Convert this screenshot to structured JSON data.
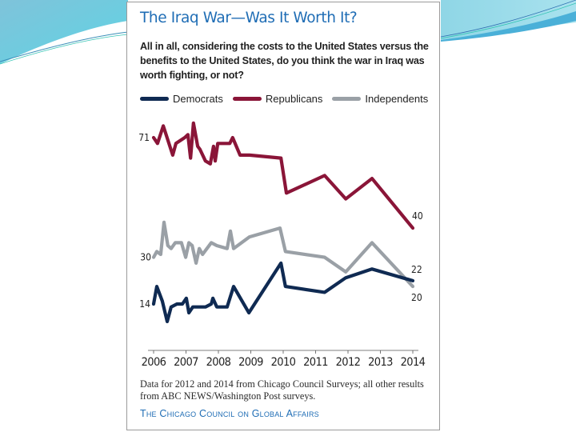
{
  "chart_data": {
    "type": "line",
    "title": "The Iraq War—Was It Worth It?",
    "subtitle": "All in all, considering the costs to the United States versus the benefits to the United States, do you think the war in Iraq was worth fighting, or not?",
    "xlabel": "",
    "ylabel": "",
    "xlim": [
      2006,
      2014
    ],
    "ylim": [
      8,
      76
    ],
    "grid": false,
    "legend_placement": "top",
    "x_ticks": [
      "2006",
      "2007",
      "2008",
      "2009",
      "2010",
      "2011",
      "2012",
      "2013",
      "2014"
    ],
    "series": [
      {
        "name": "Democrats",
        "color": "#0f2a52",
        "points": [
          [
            2006.0,
            14
          ],
          [
            2006.1,
            20
          ],
          [
            2006.27,
            15
          ],
          [
            2006.42,
            8
          ],
          [
            2006.54,
            13
          ],
          [
            2006.72,
            14
          ],
          [
            2006.89,
            14
          ],
          [
            2007.01,
            16
          ],
          [
            2007.09,
            11
          ],
          [
            2007.21,
            13
          ],
          [
            2007.36,
            13
          ],
          [
            2007.6,
            13
          ],
          [
            2007.78,
            14
          ],
          [
            2007.83,
            16
          ],
          [
            2007.95,
            13
          ],
          [
            2008.27,
            13
          ],
          [
            2008.47,
            20
          ],
          [
            2008.94,
            11
          ],
          [
            2009.93,
            28
          ],
          [
            2010.07,
            20
          ],
          [
            2011.28,
            18
          ],
          [
            2011.93,
            23
          ],
          [
            2012.74,
            26
          ],
          [
            2014.0,
            22
          ]
        ],
        "end_label": "22",
        "start_label": "14"
      },
      {
        "name": "Republicans",
        "color": "#8a1538",
        "points": [
          [
            2006.0,
            71
          ],
          [
            2006.12,
            69
          ],
          [
            2006.3,
            75
          ],
          [
            2006.59,
            65
          ],
          [
            2006.69,
            69
          ],
          [
            2006.96,
            71
          ],
          [
            2007.06,
            72
          ],
          [
            2007.14,
            64
          ],
          [
            2007.23,
            76
          ],
          [
            2007.36,
            68
          ],
          [
            2007.43,
            67
          ],
          [
            2007.6,
            63
          ],
          [
            2007.75,
            62
          ],
          [
            2007.85,
            68
          ],
          [
            2007.9,
            63
          ],
          [
            2007.98,
            69
          ],
          [
            2008.25,
            69
          ],
          [
            2008.35,
            69
          ],
          [
            2008.44,
            71
          ],
          [
            2008.67,
            65
          ],
          [
            2008.96,
            65
          ],
          [
            2009.93,
            64
          ],
          [
            2010.1,
            52
          ],
          [
            2011.28,
            58
          ],
          [
            2011.93,
            50
          ],
          [
            2012.74,
            57
          ],
          [
            2014.0,
            40
          ]
        ],
        "end_label": "40",
        "start_label": "71"
      },
      {
        "name": "Independents",
        "color": "#9aa0a6",
        "points": [
          [
            2006.0,
            30
          ],
          [
            2006.1,
            32
          ],
          [
            2006.22,
            31
          ],
          [
            2006.32,
            42
          ],
          [
            2006.44,
            34
          ],
          [
            2006.54,
            33
          ],
          [
            2006.67,
            35
          ],
          [
            2006.86,
            35
          ],
          [
            2006.99,
            30
          ],
          [
            2007.09,
            35
          ],
          [
            2007.19,
            34
          ],
          [
            2007.31,
            28
          ],
          [
            2007.41,
            33
          ],
          [
            2007.51,
            31
          ],
          [
            2007.78,
            35
          ],
          [
            2007.95,
            34
          ],
          [
            2008.27,
            33
          ],
          [
            2008.37,
            39
          ],
          [
            2008.47,
            33
          ],
          [
            2008.96,
            37
          ],
          [
            2009.9,
            40
          ],
          [
            2010.07,
            32
          ],
          [
            2011.28,
            30
          ],
          [
            2011.93,
            25
          ],
          [
            2012.74,
            35
          ],
          [
            2014.0,
            20
          ]
        ],
        "end_label": "20",
        "start_label": "30"
      }
    ],
    "annotations": [
      "71",
      "30",
      "14",
      "40",
      "22",
      "20"
    ],
    "note": "Data for 2012 and 2014 from Chicago Council Surveys; all other results from ABC NEWS/Washington Post surveys.",
    "source": "The Chicago Council on Global Affairs"
  },
  "legend": [
    {
      "label": "Democrats",
      "color": "#0f2a52"
    },
    {
      "label": "Republicans",
      "color": "#8a1538"
    },
    {
      "label": "Independents",
      "color": "#9aa0a6"
    }
  ],
  "colors": {
    "title": "#1f6db5",
    "slide_accent": "#5cc8dc"
  }
}
